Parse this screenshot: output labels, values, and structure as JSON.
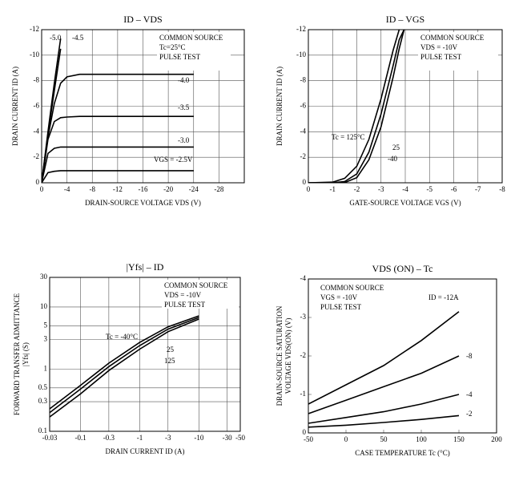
{
  "chart_data": [
    {
      "type": "line",
      "title": "ID – VDS",
      "xlabel": "DRAIN-SOURCE VOLTAGE VDS (V)",
      "ylabel": [
        "DRAIN CURRENT ID (A)"
      ],
      "annotations": [
        "COMMON SOURCE",
        "Tc=25°C",
        "PULSE TEST"
      ],
      "x": [
        0,
        -1,
        -2,
        -3,
        -4,
        -6,
        -8,
        -12,
        -16,
        -20,
        -24
      ],
      "series": [
        {
          "name": "-5.0",
          "color": "#000000",
          "values": [
            0,
            -4,
            -7.8,
            -11.3,
            null,
            null,
            null,
            null,
            null,
            null,
            null
          ]
        },
        {
          "name": "-4.5",
          "color": "#000000",
          "values": [
            0,
            -3.8,
            -7.2,
            -10.5,
            null,
            null,
            null,
            null,
            null,
            null,
            null
          ]
        },
        {
          "name": "-4.0",
          "color": "#000000",
          "values": [
            0,
            -3.6,
            -6.2,
            -7.8,
            -8.3,
            -8.5,
            -8.5,
            -8.5,
            -8.5,
            -8.5,
            -8.5
          ]
        },
        {
          "name": "-3.5",
          "color": "#000000",
          "values": [
            0,
            -3.4,
            -4.8,
            -5.1,
            -5.15,
            -5.2,
            -5.2,
            -5.2,
            -5.2,
            -5.2,
            -5.2
          ]
        },
        {
          "name": "-3.0",
          "color": "#000000",
          "values": [
            0,
            -2.3,
            -2.7,
            -2.8,
            -2.8,
            -2.8,
            -2.8,
            -2.8,
            -2.8,
            -2.8,
            -2.8
          ]
        },
        {
          "name": "VGS = -2.5V",
          "color": "#000000",
          "values": [
            0,
            -0.8,
            -0.9,
            -0.95,
            -0.95,
            -0.95,
            -0.95,
            -0.95,
            -0.95,
            -0.95,
            -0.95
          ]
        }
      ],
      "xlim": [
        0,
        -32
      ],
      "xticks": [
        0,
        -4,
        -8,
        -12,
        -16,
        -20,
        -24,
        -28
      ],
      "ylim": [
        0,
        -12
      ],
      "yticks": [
        0,
        -2,
        -4,
        -6,
        -8,
        -10,
        -12
      ],
      "grid": true
    },
    {
      "type": "line",
      "title": "ID – VGS",
      "xlabel": "GATE-SOURCE VOLTAGE VGS (V)",
      "ylabel": [
        "DRAIN CURRENT ID (A)"
      ],
      "annotations": [
        "COMMON SOURCE",
        "VDS = -10V",
        "PULSE TEST"
      ],
      "x": [
        0,
        -1,
        -1.5,
        -2,
        -2.5,
        -3,
        -3.5,
        -3.75,
        -3.95
      ],
      "series": [
        {
          "name": "Tc = 125°C",
          "color": "#000000",
          "values": [
            0,
            -0.05,
            -0.35,
            -1.3,
            -3.4,
            -6.6,
            -10.4,
            -12,
            null
          ]
        },
        {
          "name": "25",
          "color": "#000000",
          "values": [
            0,
            0,
            -0.1,
            -0.7,
            -2.4,
            -5.4,
            -9.2,
            -11.2,
            -12
          ]
        },
        {
          "name": "-40",
          "color": "#000000",
          "values": [
            0,
            0,
            -0.02,
            -0.4,
            -1.8,
            -4.4,
            -8.3,
            -10.5,
            -12
          ]
        }
      ],
      "xlim": [
        0,
        -8
      ],
      "xticks": [
        0,
        -1,
        -2,
        -3,
        -4,
        -5,
        -6,
        -7,
        -8
      ],
      "ylim": [
        0,
        -12
      ],
      "yticks": [
        0,
        -2,
        -4,
        -6,
        -8,
        -10,
        -12
      ],
      "grid": true
    },
    {
      "type": "line",
      "title": "|Yfs| – ID",
      "xlabel": "DRAIN CURRENT ID (A)",
      "ylabel": [
        "FORWARD TRANSFER ADMITTANCE",
        "|Yfs| (S)"
      ],
      "annotations": [
        "COMMON SOURCE",
        "VDS = -10V",
        "PULSE TEST"
      ],
      "x": [
        -0.03,
        -0.1,
        -0.3,
        -1,
        -3,
        -10
      ],
      "series": [
        {
          "name": "Tc = -40°C",
          "color": "#000000",
          "values": [
            0.23,
            0.55,
            1.25,
            2.7,
            4.8,
            7.2
          ]
        },
        {
          "name": "25",
          "color": "#000000",
          "values": [
            0.2,
            0.48,
            1.1,
            2.4,
            4.4,
            6.8
          ]
        },
        {
          "name": "125",
          "color": "#000000",
          "values": [
            0.17,
            0.4,
            0.95,
            2.1,
            4.0,
            6.4
          ]
        }
      ],
      "xscale": "log",
      "yscale": "log",
      "xlim": [
        -0.03,
        -50
      ],
      "xticks": [
        -0.03,
        -0.1,
        -0.3,
        -1,
        -3,
        -10,
        -30,
        -50
      ],
      "ylim": [
        0.1,
        30
      ],
      "yticks": [
        0.1,
        0.3,
        0.5,
        1,
        3,
        5,
        10,
        30
      ],
      "grid": true
    },
    {
      "type": "line",
      "title": "VDS (ON) – Tc",
      "xlabel": "CASE TEMPERATURE Tc (°C)",
      "ylabel": [
        "DRAIN-SOURCE SATURATION",
        "VOLTAGE VDS(ON) (V)"
      ],
      "annotations": [
        "COMMON SOURCE",
        "VGS = -10V",
        "PULSE TEST"
      ],
      "x": [
        -50,
        0,
        50,
        100,
        150
      ],
      "series": [
        {
          "name": "ID = -12A",
          "color": "#000000",
          "values": [
            -0.75,
            -1.25,
            -1.75,
            -2.4,
            -3.15
          ]
        },
        {
          "name": "-8",
          "color": "#000000",
          "values": [
            -0.5,
            -0.85,
            -1.2,
            -1.55,
            -2.0
          ]
        },
        {
          "name": "-4",
          "color": "#000000",
          "values": [
            -0.25,
            -0.4,
            -0.55,
            -0.75,
            -1.0
          ]
        },
        {
          "name": "-2",
          "color": "#000000",
          "values": [
            -0.15,
            -0.2,
            -0.27,
            -0.35,
            -0.45
          ]
        }
      ],
      "xlim": [
        -50,
        200
      ],
      "xticks": [
        -50,
        0,
        50,
        100,
        150,
        200
      ],
      "ylim": [
        0,
        -4
      ],
      "yticks": [
        0,
        -1,
        -2,
        -3,
        -4
      ],
      "grid": false
    }
  ]
}
